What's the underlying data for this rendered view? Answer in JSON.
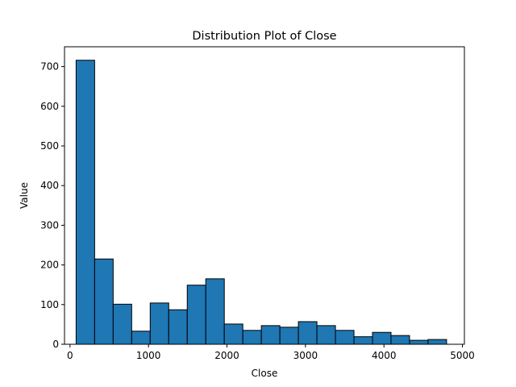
{
  "chart_data": {
    "type": "bar",
    "title": "Distribution Plot of Close",
    "xlabel": "Close",
    "ylabel": "Value",
    "xlim": [
      -70,
      5025
    ],
    "ylim": [
      0,
      750
    ],
    "x_ticks": [
      0,
      1000,
      2000,
      3000,
      4000,
      5000
    ],
    "y_ticks": [
      0,
      100,
      200,
      300,
      400,
      500,
      600,
      700
    ],
    "grid": false,
    "legend": "none",
    "bar_color": "#1f77b4",
    "edge_color": "#000000",
    "bins": [
      {
        "start": 78,
        "end": 314,
        "count": 716
      },
      {
        "start": 314,
        "end": 550,
        "count": 215
      },
      {
        "start": 550,
        "end": 786,
        "count": 101
      },
      {
        "start": 786,
        "end": 1022,
        "count": 33
      },
      {
        "start": 1022,
        "end": 1258,
        "count": 104
      },
      {
        "start": 1258,
        "end": 1494,
        "count": 87
      },
      {
        "start": 1494,
        "end": 1730,
        "count": 149
      },
      {
        "start": 1730,
        "end": 1966,
        "count": 165
      },
      {
        "start": 1966,
        "end": 2202,
        "count": 51
      },
      {
        "start": 2202,
        "end": 2438,
        "count": 35
      },
      {
        "start": 2438,
        "end": 2674,
        "count": 47
      },
      {
        "start": 2674,
        "end": 2910,
        "count": 43
      },
      {
        "start": 2910,
        "end": 3146,
        "count": 57
      },
      {
        "start": 3146,
        "end": 3382,
        "count": 47
      },
      {
        "start": 3382,
        "end": 3618,
        "count": 35
      },
      {
        "start": 3618,
        "end": 3854,
        "count": 19
      },
      {
        "start": 3854,
        "end": 4090,
        "count": 30
      },
      {
        "start": 4090,
        "end": 4326,
        "count": 22
      },
      {
        "start": 4326,
        "end": 4562,
        "count": 10
      },
      {
        "start": 4562,
        "end": 4798,
        "count": 12
      }
    ]
  }
}
